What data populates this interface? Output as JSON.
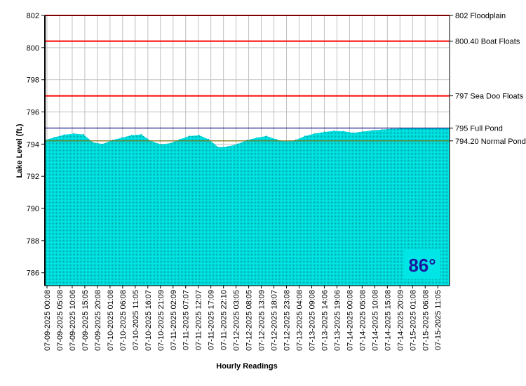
{
  "chart_data": {
    "type": "area",
    "title": "",
    "xlabel": "Hourly Readings",
    "ylabel": "Lake Level (ft.)",
    "ylim": [
      785.2,
      802
    ],
    "y_ticks": [
      786,
      788,
      790,
      792,
      794,
      796,
      798,
      800,
      802
    ],
    "grid": true,
    "x_tick_labels": [
      "07-09-2025 00:08",
      "07-09-2025 05:08",
      "07-09-2025 10:06",
      "07-09-2025 15:05",
      "07-09-2025 20:08",
      "07-10-2025 01:08",
      "07-10-2025 06:08",
      "07-10-2025 11:05",
      "07-10-2025 16:07",
      "07-10-2025 21:09",
      "07-11-2025 02:09",
      "07-11-2025 07:07",
      "07-11-2025 12:07",
      "07-11-2025 17:09",
      "07-11-2025 22:10",
      "07-12-2025 03:05",
      "07-12-2025 08:05",
      "07-12-2025 13:09",
      "07-12-2025 18:07",
      "07-12-2025 23:08",
      "07-13-2025 04:08",
      "07-13-2025 09:08",
      "07-13-2025 14:06",
      "07-13-2025 19:06",
      "07-14-2025 00:08",
      "07-14-2025 05:08",
      "07-14-2025 10:08",
      "07-14-2025 15:08",
      "07-14-2025 20:09",
      "07-15-2025 01:08",
      "07-15-2025 06:08",
      "07-15-2025 11:05"
    ],
    "series": [
      {
        "color": "#00e5e5",
        "values": [
          794.25,
          794.42,
          794.58,
          794.65,
          794.6,
          794.1,
          794.0,
          794.25,
          794.4,
          794.55,
          794.6,
          794.2,
          793.98,
          794.05,
          794.3,
          794.5,
          794.55,
          794.3,
          793.8,
          793.85,
          794.0,
          794.25,
          794.4,
          794.5,
          794.3,
          794.15,
          794.25,
          794.5,
          794.65,
          794.75,
          794.82,
          794.8,
          794.7,
          794.78,
          794.85,
          794.9,
          794.95,
          794.97,
          794.98,
          794.98,
          794.98,
          794.98,
          794.97
        ]
      }
    ],
    "reference_lines": [
      {
        "value": 802,
        "label": "802 Floodplain",
        "color": "#ff0000"
      },
      {
        "value": 800.4,
        "label": "800.40 Boat Floats",
        "color": "#ff0000"
      },
      {
        "value": 797,
        "label": "797 Sea Doo Floats",
        "color": "#ff0000"
      },
      {
        "value": 795,
        "label": "795 Full Pond",
        "color": "#000080"
      },
      {
        "value": 794.2,
        "label": "794.20 Normal Pond",
        "color": "#7a6a00"
      }
    ],
    "temperature_badge": {
      "text": "86°",
      "bg_color": "#00e5e5",
      "text_color": "#1a1aa0"
    }
  }
}
